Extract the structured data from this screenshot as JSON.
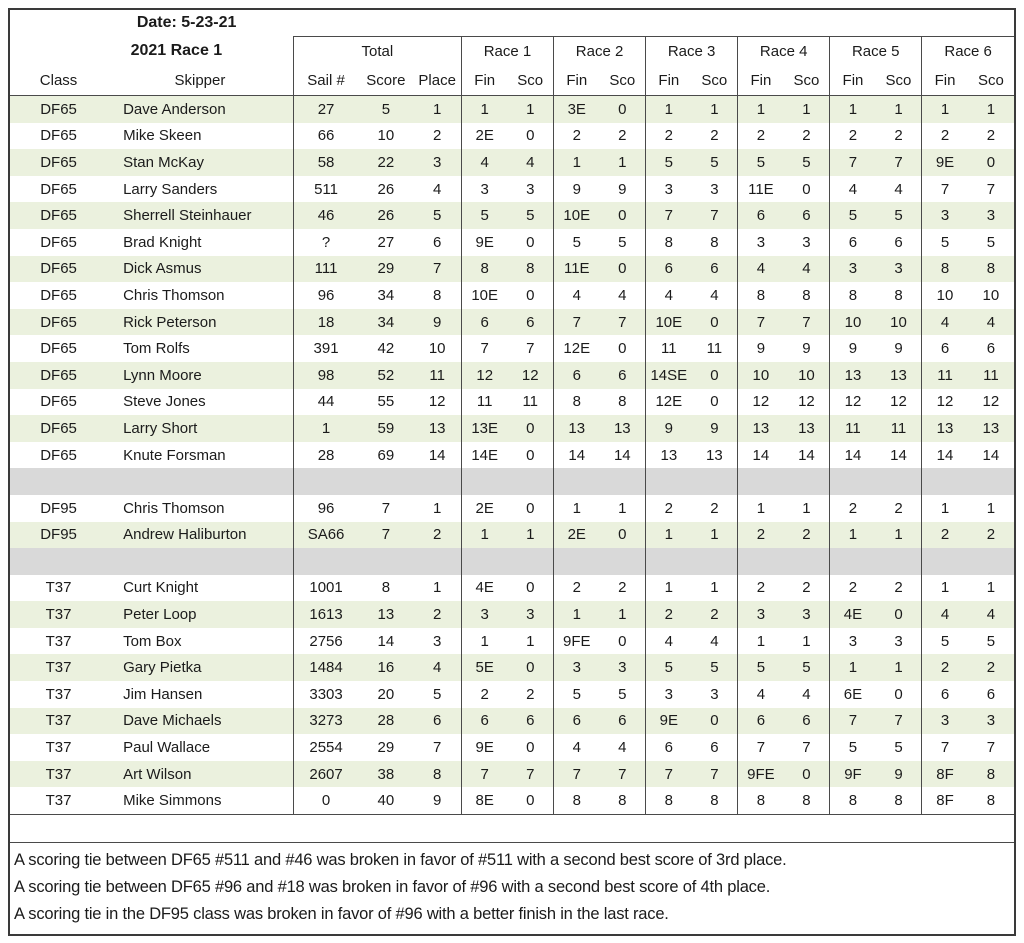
{
  "header": {
    "date": "Date: 5-23-21",
    "title": "2021 Race 1",
    "columns": {
      "class": "Class",
      "skipper": "Skipper",
      "sail": "Sail #",
      "score": "Score",
      "place": "Place",
      "fin": "Fin",
      "sco": "Sco"
    },
    "groups": {
      "total": "Total",
      "races": [
        "Race 1",
        "Race 2",
        "Race 3",
        "Race 4",
        "Race 5",
        "Race 6"
      ]
    }
  },
  "table": {
    "rows": [
      {
        "type": "data",
        "shaded": true,
        "cells": [
          "DF65",
          "Dave Anderson",
          "27",
          "5",
          "1",
          "1",
          "1",
          "3E",
          "0",
          "1",
          "1",
          "1",
          "1",
          "1",
          "1",
          "1",
          "1"
        ]
      },
      {
        "type": "data",
        "shaded": false,
        "cells": [
          "DF65",
          "Mike Skeen",
          "66",
          "10",
          "2",
          "2E",
          "0",
          "2",
          "2",
          "2",
          "2",
          "2",
          "2",
          "2",
          "2",
          "2",
          "2"
        ]
      },
      {
        "type": "data",
        "shaded": true,
        "cells": [
          "DF65",
          "Stan McKay",
          "58",
          "22",
          "3",
          "4",
          "4",
          "1",
          "1",
          "5",
          "5",
          "5",
          "5",
          "7",
          "7",
          "9E",
          "0"
        ]
      },
      {
        "type": "data",
        "shaded": false,
        "cells": [
          "DF65",
          "Larry Sanders",
          "511",
          "26",
          "4",
          "3",
          "3",
          "9",
          "9",
          "3",
          "3",
          "11E",
          "0",
          "4",
          "4",
          "7",
          "7"
        ]
      },
      {
        "type": "data",
        "shaded": true,
        "cells": [
          "DF65",
          "Sherrell Steinhauer",
          "46",
          "26",
          "5",
          "5",
          "5",
          "10E",
          "0",
          "7",
          "7",
          "6",
          "6",
          "5",
          "5",
          "3",
          "3"
        ]
      },
      {
        "type": "data",
        "shaded": false,
        "cells": [
          "DF65",
          "Brad Knight",
          "?",
          "27",
          "6",
          "9E",
          "0",
          "5",
          "5",
          "8",
          "8",
          "3",
          "3",
          "6",
          "6",
          "5",
          "5"
        ]
      },
      {
        "type": "data",
        "shaded": true,
        "cells": [
          "DF65",
          "Dick Asmus",
          "111",
          "29",
          "7",
          "8",
          "8",
          "11E",
          "0",
          "6",
          "6",
          "4",
          "4",
          "3",
          "3",
          "8",
          "8"
        ]
      },
      {
        "type": "data",
        "shaded": false,
        "cells": [
          "DF65",
          "Chris Thomson",
          "96",
          "34",
          "8",
          "10E",
          "0",
          "4",
          "4",
          "4",
          "4",
          "8",
          "8",
          "8",
          "8",
          "10",
          "10"
        ]
      },
      {
        "type": "data",
        "shaded": true,
        "cells": [
          "DF65",
          "Rick Peterson",
          "18",
          "34",
          "9",
          "6",
          "6",
          "7",
          "7",
          "10E",
          "0",
          "7",
          "7",
          "10",
          "10",
          "4",
          "4"
        ]
      },
      {
        "type": "data",
        "shaded": false,
        "cells": [
          "DF65",
          "Tom Rolfs",
          "391",
          "42",
          "10",
          "7",
          "7",
          "12E",
          "0",
          "11",
          "11",
          "9",
          "9",
          "9",
          "9",
          "6",
          "6"
        ]
      },
      {
        "type": "data",
        "shaded": true,
        "cells": [
          "DF65",
          "Lynn Moore",
          "98",
          "52",
          "11",
          "12",
          "12",
          "6",
          "6",
          "14SE",
          "0",
          "10",
          "10",
          "13",
          "13",
          "11",
          "11"
        ]
      },
      {
        "type": "data",
        "shaded": false,
        "cells": [
          "DF65",
          "Steve Jones",
          "44",
          "55",
          "12",
          "11",
          "11",
          "8",
          "8",
          "12E",
          "0",
          "12",
          "12",
          "12",
          "12",
          "12",
          "12"
        ]
      },
      {
        "type": "data",
        "shaded": true,
        "cells": [
          "DF65",
          "Larry Short",
          "1",
          "59",
          "13",
          "13E",
          "0",
          "13",
          "13",
          "9",
          "9",
          "13",
          "13",
          "11",
          "11",
          "13",
          "13"
        ]
      },
      {
        "type": "data",
        "shaded": false,
        "cells": [
          "DF65",
          "Knute Forsman",
          "28",
          "69",
          "14",
          "14E",
          "0",
          "14",
          "14",
          "13",
          "13",
          "14",
          "14",
          "14",
          "14",
          "14",
          "14"
        ]
      },
      {
        "type": "separator"
      },
      {
        "type": "data",
        "shaded": false,
        "cells": [
          "DF95",
          "Chris Thomson",
          "96",
          "7",
          "1",
          "2E",
          "0",
          "1",
          "1",
          "2",
          "2",
          "1",
          "1",
          "2",
          "2",
          "1",
          "1"
        ]
      },
      {
        "type": "data",
        "shaded": true,
        "cells": [
          "DF95",
          "Andrew Haliburton",
          "SA66",
          "7",
          "2",
          "1",
          "1",
          "2E",
          "0",
          "1",
          "1",
          "2",
          "2",
          "1",
          "1",
          "2",
          "2"
        ]
      },
      {
        "type": "separator"
      },
      {
        "type": "data",
        "shaded": false,
        "cells": [
          "T37",
          "Curt Knight",
          "1001",
          "8",
          "1",
          "4E",
          "0",
          "2",
          "2",
          "1",
          "1",
          "2",
          "2",
          "2",
          "2",
          "1",
          "1"
        ]
      },
      {
        "type": "data",
        "shaded": true,
        "cells": [
          "T37",
          "Peter Loop",
          "1613",
          "13",
          "2",
          "3",
          "3",
          "1",
          "1",
          "2",
          "2",
          "3",
          "3",
          "4E",
          "0",
          "4",
          "4"
        ]
      },
      {
        "type": "data",
        "shaded": false,
        "cells": [
          "T37",
          "Tom Box",
          "2756",
          "14",
          "3",
          "1",
          "1",
          "9FE",
          "0",
          "4",
          "4",
          "1",
          "1",
          "3",
          "3",
          "5",
          "5"
        ]
      },
      {
        "type": "data",
        "shaded": true,
        "cells": [
          "T37",
          "Gary Pietka",
          "1484",
          "16",
          "4",
          "5E",
          "0",
          "3",
          "3",
          "5",
          "5",
          "5",
          "5",
          "1",
          "1",
          "2",
          "2"
        ]
      },
      {
        "type": "data",
        "shaded": false,
        "cells": [
          "T37",
          "Jim Hansen",
          "3303",
          "20",
          "5",
          "2",
          "2",
          "5",
          "5",
          "3",
          "3",
          "4",
          "4",
          "6E",
          "0",
          "6",
          "6"
        ]
      },
      {
        "type": "data",
        "shaded": true,
        "cells": [
          "T37",
          "Dave Michaels",
          "3273",
          "28",
          "6",
          "6",
          "6",
          "6",
          "6",
          "9E",
          "0",
          "6",
          "6",
          "7",
          "7",
          "3",
          "3"
        ]
      },
      {
        "type": "data",
        "shaded": false,
        "cells": [
          "T37",
          "Paul Wallace",
          "2554",
          "29",
          "7",
          "9E",
          "0",
          "4",
          "4",
          "6",
          "6",
          "7",
          "7",
          "5",
          "5",
          "7",
          "7"
        ]
      },
      {
        "type": "data",
        "shaded": true,
        "cells": [
          "T37",
          "Art Wilson",
          "2607",
          "38",
          "8",
          "7",
          "7",
          "7",
          "7",
          "7",
          "7",
          "9FE",
          "0",
          "9F",
          "9",
          "8F",
          "8"
        ]
      },
      {
        "type": "data",
        "shaded": false,
        "cells": [
          "T37",
          "Mike Simmons",
          "0",
          "40",
          "9",
          "8E",
          "0",
          "8",
          "8",
          "8",
          "8",
          "8",
          "8",
          "8",
          "8",
          "8F",
          "8"
        ]
      }
    ]
  },
  "notes": [
    "A scoring tie between DF65 #511 and #46 was broken in favor of #511 with a second best score of 3rd place.",
    "A scoring tie between DF65 #96 and #18 was broken in favor of #96 with a second best score of 4th place.",
    "A scoring tie in the DF95 class was broken in favor of #96 with a better finish in the last race."
  ],
  "colors": {
    "row_green": "#EBF1DE",
    "row_gray": "#D9D9D9",
    "grid": "#4a4a4a",
    "outer": "#3a3a3a",
    "text": "#1b1b1b"
  }
}
